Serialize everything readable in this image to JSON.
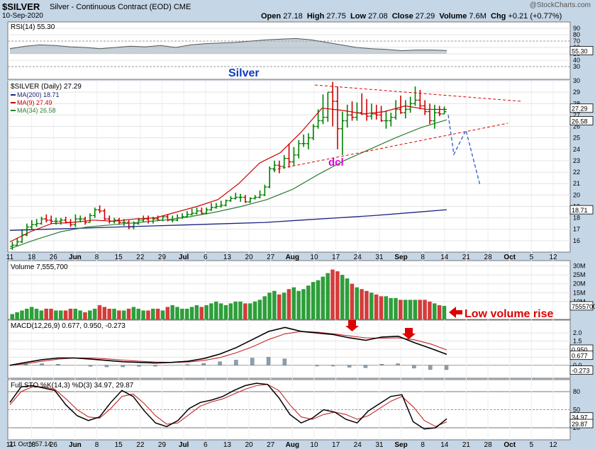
{
  "header": {
    "symbol": "$SILVER",
    "name": "Silver - Continuous Contract (EOD)",
    "exchange": "CME",
    "date": "10-Sep-2020",
    "watermark": "@StockCharts.com",
    "ohlc": {
      "open_label": "Open",
      "open": "27.18",
      "high_label": "High",
      "high": "27.75",
      "low_label": "Low",
      "low": "27.08",
      "close_label": "Close",
      "close": "27.29",
      "volume_label": "Volume",
      "volume": "7.6M",
      "chg_label": "Chg",
      "chg": "+0.21 (+0.77%)"
    }
  },
  "colors": {
    "background": "#c5d6e6",
    "panel": "#ffffff",
    "up": "#008000",
    "down": "#cc0000",
    "ma200": "#1a237e",
    "ma9": "#cc0000",
    "ma34": "#2e7d32",
    "annotation_red": "#dd0000",
    "annotation_blue": "#2a5fd0",
    "annotation_magenta": "#dd00dd",
    "title_blue": "#0d3bc0"
  },
  "annotations": {
    "silver": "Silver",
    "dcl": "dcl",
    "low_volume": "Low volume rise"
  },
  "footer": {
    "date_label": "21 Oct Y:57.14"
  },
  "chart_data": {
    "type": "candlestick",
    "x_tick_labels": [
      "11",
      "18",
      "26",
      "Jun",
      "8",
      "15",
      "22",
      "29",
      "Jul",
      "6",
      "13",
      "20",
      "27",
      "Aug",
      "10",
      "17",
      "24",
      "31",
      "Sep",
      "8",
      "14",
      "21",
      "28",
      "Oct",
      "5",
      "12"
    ],
    "price": {
      "legend": "$SILVER (Daily) 27.29",
      "ylim": [
        15,
        30
      ],
      "y_ticks": [
        16,
        17,
        18,
        19,
        20,
        21,
        22,
        23,
        24,
        25,
        26,
        27,
        28,
        29,
        30
      ],
      "opens": [
        15.5,
        15.6,
        15.9,
        16.5,
        17.2,
        17.4,
        17.5,
        17.9,
        17.8,
        17.7,
        17.7,
        17.8,
        17.6,
        17.4,
        17.9,
        17.9,
        17.6,
        18.2,
        18.7,
        18.6,
        17.9,
        17.7,
        17.8,
        17.6,
        17.6,
        17.2,
        17.5,
        17.8,
        17.9,
        17.7,
        17.9,
        17.8,
        18.1,
        17.8,
        17.8,
        18.0,
        18.1,
        18.3,
        18.4,
        18.6,
        18.4,
        18.7,
        18.9,
        19.0,
        19.1,
        19.5,
        19.7,
        19.8,
        19.8,
        19.4,
        19.7,
        19.8,
        20.0,
        20.7,
        22.3,
        22.6,
        22.5,
        23.2,
        22.9,
        23.5,
        24.5,
        24.5,
        25.0,
        26.0,
        26.5,
        26.8,
        29.0,
        28.2,
        25.8,
        26.5,
        27.0,
        26.8,
        27.2,
        27.1,
        26.9,
        27.1,
        27.0,
        26.5,
        26.5,
        26.8,
        27.5,
        27.2,
        27.5,
        28.0,
        28.3,
        27.8,
        27.3,
        26.5,
        27.2,
        27.1
      ],
      "highs": [
        15.9,
        16.2,
        17.0,
        17.5,
        17.8,
        17.9,
        18.1,
        18.3,
        18.2,
        18.0,
        18.0,
        18.1,
        17.9,
        18.3,
        18.2,
        18.1,
        18.4,
        18.9,
        19.1,
        18.8,
        18.2,
        18.0,
        18.0,
        17.9,
        17.8,
        17.7,
        18.0,
        18.2,
        18.2,
        18.1,
        18.2,
        18.2,
        18.3,
        18.2,
        18.3,
        18.4,
        18.6,
        18.8,
        18.9,
        18.9,
        18.9,
        19.3,
        19.3,
        19.5,
        19.6,
        19.9,
        20.2,
        20.1,
        20.0,
        19.8,
        20.0,
        20.4,
        20.9,
        22.5,
        23.0,
        23.0,
        23.5,
        24.5,
        24.2,
        24.8,
        25.3,
        25.4,
        26.2,
        27.5,
        28.8,
        29.0,
        29.9,
        29.5,
        27.3,
        27.9,
        28.2,
        28.1,
        28.9,
        28.4,
        28.0,
        27.9,
        27.8,
        27.4,
        27.2,
        28.3,
        28.7,
        28.3,
        28.6,
        29.5,
        29.2,
        28.3,
        28.0,
        27.9,
        27.8,
        27.75
      ],
      "lows": [
        15.2,
        15.5,
        15.8,
        16.4,
        17.0,
        17.2,
        17.4,
        17.6,
        17.5,
        17.4,
        17.4,
        17.5,
        17.2,
        17.2,
        17.6,
        17.4,
        17.6,
        18.0,
        18.4,
        17.8,
        17.5,
        17.5,
        17.4,
        17.3,
        17.0,
        17.0,
        17.4,
        17.6,
        17.5,
        17.5,
        17.7,
        17.7,
        17.7,
        17.6,
        17.7,
        17.9,
        18.0,
        18.2,
        18.3,
        18.3,
        18.3,
        18.6,
        18.8,
        18.9,
        19.0,
        19.4,
        19.6,
        19.4,
        19.3,
        19.3,
        19.6,
        19.7,
        19.9,
        20.6,
        22.0,
        21.9,
        22.3,
        22.4,
        22.6,
        23.2,
        24.2,
        24.0,
        24.8,
        25.8,
        26.2,
        26.4,
        26.0,
        24.0,
        23.5,
        25.9,
        26.5,
        26.5,
        27.0,
        26.5,
        26.6,
        26.6,
        26.4,
        25.8,
        26.0,
        26.6,
        27.1,
        26.7,
        27.2,
        27.8,
        27.5,
        27.0,
        26.2,
        25.8,
        26.9,
        27.08
      ],
      "closes": [
        15.6,
        15.9,
        16.5,
        17.2,
        17.4,
        17.5,
        17.9,
        17.8,
        17.7,
        17.7,
        17.8,
        17.6,
        17.4,
        17.9,
        17.9,
        17.6,
        18.2,
        18.7,
        18.6,
        17.9,
        17.7,
        17.8,
        17.6,
        17.6,
        17.2,
        17.5,
        17.8,
        17.9,
        17.7,
        17.9,
        17.8,
        18.1,
        17.8,
        17.8,
        18.0,
        18.1,
        18.3,
        18.4,
        18.6,
        18.4,
        18.7,
        18.9,
        19.0,
        19.1,
        19.5,
        19.7,
        19.8,
        19.8,
        19.4,
        19.7,
        19.8,
        20.0,
        20.7,
        22.3,
        22.6,
        22.5,
        23.2,
        22.9,
        23.5,
        24.5,
        24.5,
        25.0,
        26.0,
        26.5,
        26.8,
        29.0,
        28.2,
        25.8,
        26.5,
        27.0,
        26.8,
        27.2,
        27.1,
        26.9,
        27.1,
        27.0,
        26.5,
        26.5,
        26.8,
        27.5,
        27.2,
        27.5,
        28.0,
        28.3,
        27.8,
        27.3,
        26.5,
        27.2,
        27.1,
        27.29
      ],
      "price_labels": [
        "27.29",
        "26.58",
        "18.71"
      ],
      "ma200": {
        "name": "MA(200) 18.71",
        "values": [
          16.9,
          17.0,
          17.1,
          17.2,
          17.3,
          17.4,
          17.5,
          17.6,
          17.8,
          18.0,
          18.2,
          18.45,
          18.71
        ]
      },
      "ma9": {
        "name": "MA(9) 27.49",
        "values": [
          15.9,
          16.8,
          17.5,
          17.6,
          17.8,
          17.7,
          17.9,
          18.0,
          18.5,
          19.0,
          19.6,
          21.0,
          22.8,
          23.7,
          25.5,
          27.6,
          27.4,
          27.1,
          27.3,
          27.8,
          27.5,
          27.49
        ]
      },
      "ma34": {
        "name": "MA(34) 26.58",
        "values": [
          15.3,
          16.1,
          16.8,
          17.2,
          17.4,
          17.6,
          17.8,
          18.1,
          18.5,
          19.0,
          19.6,
          20.5,
          21.8,
          23.0,
          24.0,
          25.0,
          25.9,
          26.58
        ]
      }
    },
    "rsi": {
      "label": "RSI(14) 55.30",
      "ylim": [
        10,
        100
      ],
      "y_ticks": [
        90,
        80,
        70,
        60,
        50,
        40,
        30
      ],
      "value_label": "55.30",
      "values": [
        58,
        62,
        64,
        63,
        61,
        60,
        58,
        60,
        62,
        61,
        63,
        60,
        64,
        66,
        67,
        68,
        70,
        72,
        73,
        74,
        72,
        68,
        64,
        60,
        58,
        57,
        55,
        56,
        56,
        55.3
      ]
    },
    "volume": {
      "label": "Volume 7,555,700",
      "y_ticks": [
        "30M",
        "25M",
        "20M",
        "15M",
        "10M"
      ],
      "ylim_m": [
        0,
        33
      ],
      "value_label": "7555700",
      "values_m": [
        3,
        4,
        5,
        6,
        7,
        6,
        5,
        6,
        6,
        5,
        5,
        5,
        6,
        6,
        5,
        4,
        5,
        6,
        8,
        7,
        6,
        6,
        5,
        5,
        6,
        7,
        6,
        5,
        5,
        6,
        6,
        5,
        7,
        8,
        7,
        6,
        6,
        7,
        8,
        7,
        8,
        9,
        10,
        9,
        8,
        9,
        10,
        10,
        9,
        9,
        10,
        11,
        13,
        15,
        16,
        14,
        15,
        17,
        18,
        16,
        17,
        19,
        21,
        22,
        24,
        26,
        28,
        27,
        25,
        23,
        20,
        18,
        17,
        16,
        15,
        14,
        13,
        13,
        12,
        12,
        11,
        11,
        11,
        11,
        11,
        11,
        10,
        9,
        8,
        7.6
      ]
    },
    "macd": {
      "label": "MACD(12,26,9) 0.677, 0.950, -0.273",
      "ylim": [
        -0.8,
        2.8
      ],
      "y_ticks": [
        "2.0",
        "1.5",
        "1.0",
        "0.5",
        "0.0"
      ],
      "value_labels": [
        "0.950",
        "0.677",
        "-0.273"
      ],
      "macd": [
        0.0,
        0.18,
        0.35,
        0.45,
        0.45,
        0.38,
        0.3,
        0.22,
        0.18,
        0.14,
        0.18,
        0.25,
        0.42,
        0.7,
        1.1,
        1.6,
        2.1,
        2.35,
        2.1,
        2.0,
        1.9,
        1.7,
        1.55,
        1.75,
        1.8,
        1.4,
        1.05,
        0.677
      ],
      "signal": [
        0.0,
        0.1,
        0.25,
        0.38,
        0.45,
        0.45,
        0.4,
        0.32,
        0.25,
        0.2,
        0.18,
        0.2,
        0.3,
        0.48,
        0.78,
        1.15,
        1.6,
        1.95,
        2.1,
        2.05,
        1.95,
        1.82,
        1.7,
        1.68,
        1.7,
        1.58,
        1.32,
        0.95
      ],
      "histogram": [
        0.0,
        0.08,
        0.1,
        0.07,
        0.0,
        -0.07,
        -0.1,
        -0.1,
        -0.07,
        -0.06,
        0.0,
        0.05,
        0.12,
        0.22,
        0.32,
        0.45,
        0.5,
        0.4,
        0.0,
        -0.05,
        -0.05,
        -0.12,
        -0.15,
        0.07,
        0.1,
        -0.18,
        -0.27,
        -0.273
      ]
    },
    "stochastic": {
      "label": "Full STO %K(14,3) %D(3) 34.97, 29.87",
      "ylim": [
        0,
        100
      ],
      "y_ticks": [
        "80",
        "50",
        "20"
      ],
      "value_labels": [
        "34.97",
        "29.87"
      ],
      "k": [
        62,
        88,
        90,
        86,
        82,
        58,
        40,
        32,
        38,
        62,
        82,
        72,
        48,
        28,
        22,
        32,
        52,
        62,
        66,
        72,
        82,
        90,
        94,
        92,
        70,
        42,
        28,
        36,
        50,
        46,
        34,
        28,
        48,
        60,
        72,
        75,
        30,
        18,
        20,
        34.97
      ],
      "d": [
        58,
        80,
        88,
        88,
        84,
        68,
        50,
        38,
        36,
        52,
        72,
        76,
        60,
        40,
        26,
        28,
        42,
        56,
        63,
        68,
        76,
        84,
        90,
        92,
        82,
        58,
        38,
        34,
        42,
        46,
        42,
        34,
        40,
        52,
        64,
        72,
        55,
        32,
        22,
        29.87
      ]
    }
  }
}
